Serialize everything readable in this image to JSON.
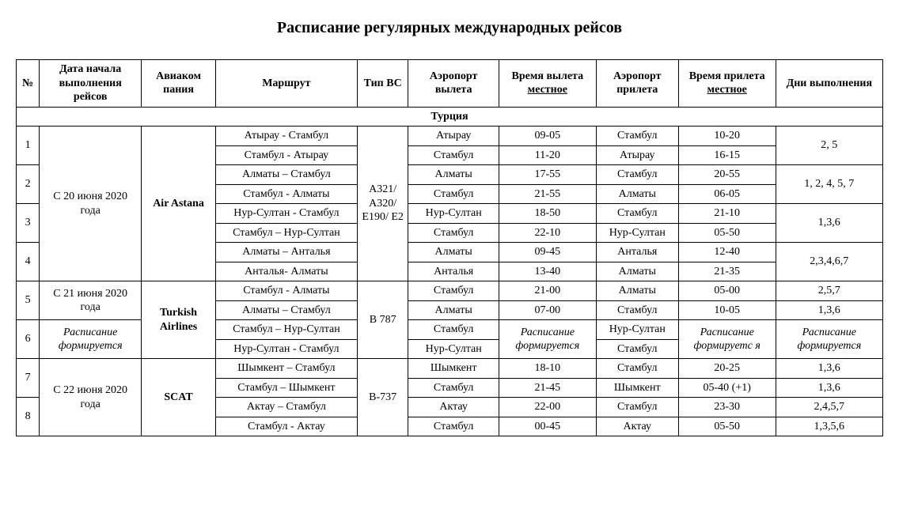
{
  "title": "Расписание регулярных международных рейсов",
  "headers": {
    "num": "№",
    "start_date": "Дата начала выполнения рейсов",
    "airline": "Авиаком пания",
    "route": "Маршрут",
    "ac_type": "Тип ВС",
    "dep_airport": "Аэропорт вылета",
    "dep_time_prefix": "Время вылета",
    "dep_time_underline": "местное",
    "arr_airport": "Аэропорт прилета",
    "arr_time_prefix": "Время прилета",
    "arr_time_underline": "местное",
    "days": "Дни выполнения"
  },
  "section": "Турция",
  "airlines": {
    "air_astana": "Air Astana",
    "turkish": "Turkish Airlines",
    "scat": "SCAT"
  },
  "dates": {
    "d20": "С 20 июня 2020 года",
    "d21": "С 21 июня 2020 года",
    "d22": "С 22 июня 2020 года",
    "forming": "Расписание формируется"
  },
  "ac": {
    "air_astana": "A321/ A320/ E190/ E2",
    "b787": "B 787",
    "b737": "B-737"
  },
  "rows": {
    "r1a": {
      "route": "Атырау - Стамбул",
      "dep_ap": "Атырау",
      "dep_tm": "09-05",
      "arr_ap": "Стамбул",
      "arr_tm": "10-20"
    },
    "r1b": {
      "route": "Стамбул - Атырау",
      "dep_ap": "Стамбул",
      "dep_tm": "11-20",
      "arr_ap": "Атырау",
      "arr_tm": "16-15"
    },
    "r2a": {
      "route": "Алматы – Стамбул",
      "dep_ap": "Алматы",
      "dep_tm": "17-55",
      "arr_ap": "Стамбул",
      "arr_tm": "20-55"
    },
    "r2b": {
      "route": "Стамбул - Алматы",
      "dep_ap": "Стамбул",
      "dep_tm": "21-55",
      "arr_ap": "Алматы",
      "arr_tm": "06-05"
    },
    "r3a": {
      "route": "Нур-Султан - Стамбул",
      "dep_ap": "Нур-Султан",
      "dep_tm": "18-50",
      "arr_ap": "Стамбул",
      "arr_tm": "21-10"
    },
    "r3b": {
      "route": "Стамбул – Нур-Султан",
      "dep_ap": "Стамбул",
      "dep_tm": "22-10",
      "arr_ap": "Нур-Султан",
      "arr_tm": "05-50"
    },
    "r4a": {
      "route": "Алматы – Анталья",
      "dep_ap": "Алматы",
      "dep_tm": "09-45",
      "arr_ap": "Анталья",
      "arr_tm": "12-40"
    },
    "r4b": {
      "route": "Анталья- Алматы",
      "dep_ap": "Анталья",
      "dep_tm": "13-40",
      "arr_ap": "Алматы",
      "arr_tm": "21-35"
    },
    "r5a": {
      "route": "Стамбул - Алматы",
      "dep_ap": "Стамбул",
      "dep_tm": "21-00",
      "arr_ap": "Алматы",
      "arr_tm": "05-00"
    },
    "r5b": {
      "route": "Алматы – Стамбул",
      "dep_ap": "Алматы",
      "dep_tm": "07-00",
      "arr_ap": "Стамбул",
      "arr_tm": "10-05"
    },
    "r6a": {
      "route": "Стамбул – Нур-Султан",
      "dep_ap": "Стамбул"
    },
    "r6b": {
      "route": "Нур-Султан - Стамбул",
      "dep_ap": "Нур-Султан"
    },
    "r6arr_a": "Нур-Султан",
    "r6arr_b": "Стамбул",
    "r7a": {
      "route": "Шымкент – Стамбул",
      "dep_ap": "Шымкент",
      "dep_tm": "18-10",
      "arr_ap": "Стамбул",
      "arr_tm": "20-25"
    },
    "r7b": {
      "route": "Стамбул – Шымкент",
      "dep_ap": "Стамбул",
      "dep_tm": "21-45",
      "arr_ap": "Шымкент",
      "arr_tm": "05-40 (+1)"
    },
    "r8a": {
      "route": "Актау – Стамбул",
      "dep_ap": "Актау",
      "dep_tm": "22-00",
      "arr_ap": "Стамбул",
      "arr_tm": "23-30"
    },
    "r8b": {
      "route": "Стамбул - Актау",
      "dep_ap": "Стамбул",
      "dep_tm": "00-45",
      "arr_ap": "Актау",
      "arr_tm": "05-50"
    }
  },
  "days": {
    "d1": "2, 5",
    "d2": "1, 2, 4, 5, 7",
    "d3": "1,3,6",
    "d4": "2,3,4,6,7",
    "d5a": "2,5,7",
    "d5b": "1,3,6",
    "d6": "Расписание формируется",
    "d7a": "1,3,6",
    "d7b": "1,3,6",
    "d8a": "2,4,5,7",
    "d8b": "1,3,5,6"
  },
  "forming_time": "Расписание формируется",
  "forming_arr": "Расписание формируетс я"
}
